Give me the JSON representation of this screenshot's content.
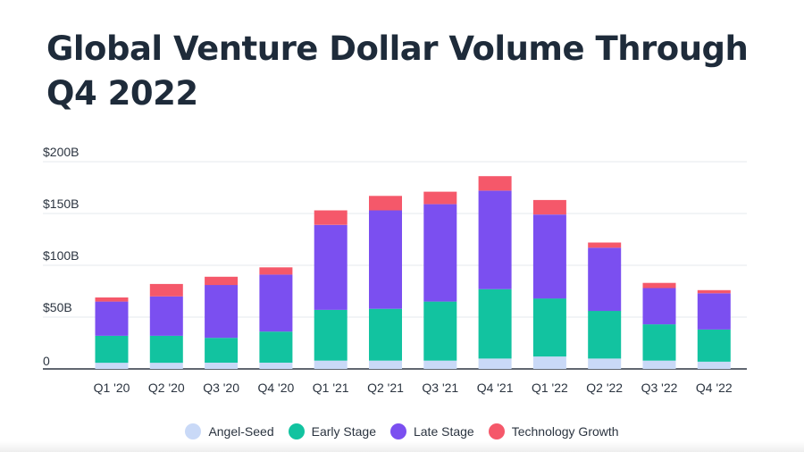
{
  "chart_data": {
    "type": "bar",
    "stacked": true,
    "title": "Global Venture Dollar Volume Through Q4 2022",
    "categories": [
      "Q1 '20",
      "Q2 '20",
      "Q3 '20",
      "Q4 '20",
      "Q1 '21",
      "Q2 '21",
      "Q3 '21",
      "Q4 '21",
      "Q1 '22",
      "Q2 '22",
      "Q3 '22",
      "Q4 '22"
    ],
    "series": [
      {
        "name": "Angel-Seed",
        "color": "#c9d9f7",
        "values": [
          6,
          6,
          6,
          6,
          8,
          8,
          8,
          10,
          12,
          10,
          8,
          7
        ]
      },
      {
        "name": "Early Stage",
        "color": "#12c3a0",
        "values": [
          26,
          26,
          24,
          30,
          49,
          50,
          57,
          67,
          56,
          46,
          35,
          31
        ]
      },
      {
        "name": "Late Stage",
        "color": "#7b4ff0",
        "values": [
          33,
          38,
          51,
          55,
          82,
          95,
          94,
          95,
          81,
          61,
          35,
          35
        ]
      },
      {
        "name": "Technology Growth",
        "color": "#f5586a",
        "values": [
          4,
          12,
          8,
          7,
          14,
          14,
          12,
          14,
          14,
          5,
          5,
          3
        ]
      }
    ],
    "ylim": [
      0,
      200
    ],
    "yticks": [
      {
        "value": 0,
        "label": "0"
      },
      {
        "value": 50,
        "label": "$50B"
      },
      {
        "value": 100,
        "label": "$100B"
      },
      {
        "value": 150,
        "label": "$150B"
      },
      {
        "value": 200,
        "label": "$200B"
      }
    ],
    "grid": true,
    "legend_position": "bottom"
  }
}
